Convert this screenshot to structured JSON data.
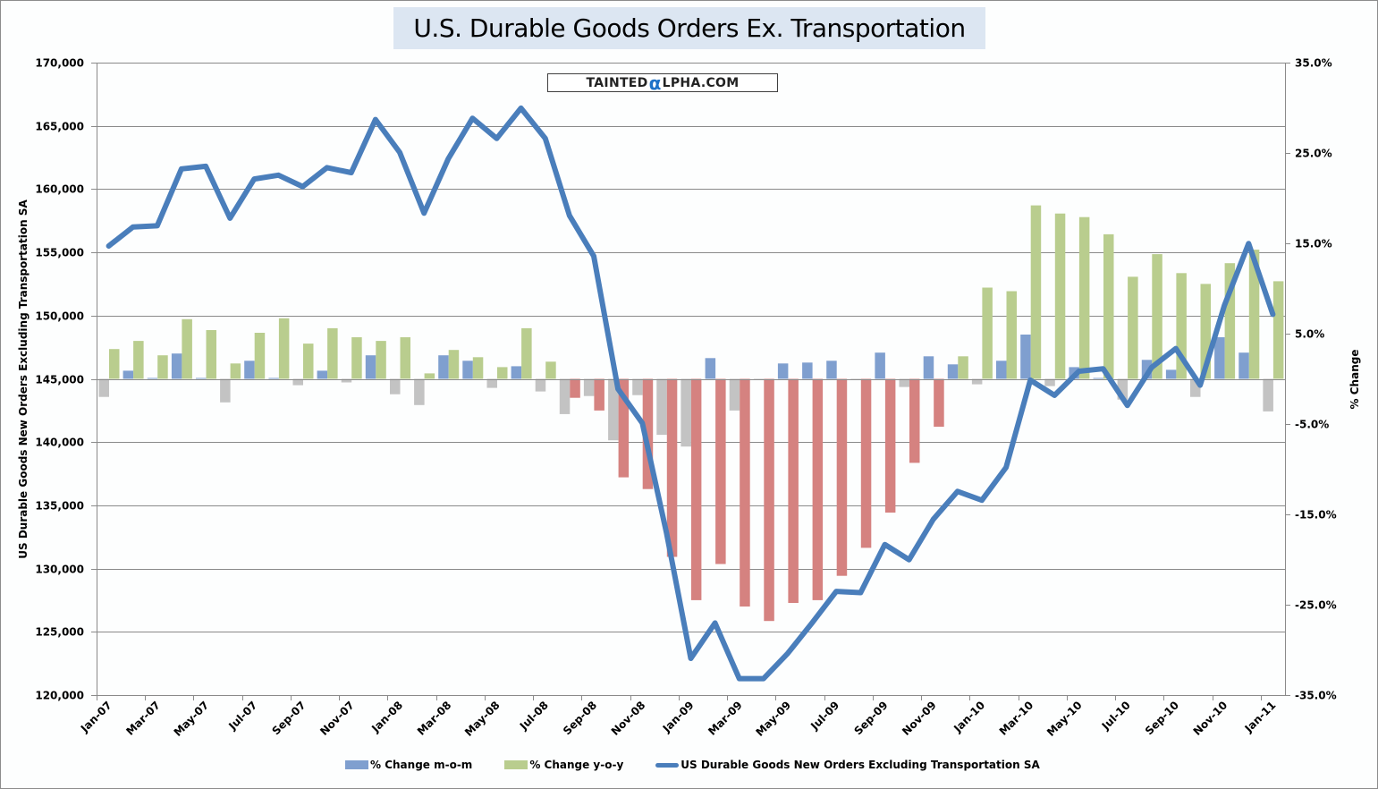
{
  "chart_data": {
    "type": "bar+line",
    "title": "U.S. Durable Goods Orders Ex. Transportation",
    "watermark": "TAINTEDαLPHA.COM",
    "watermark_parts": [
      "TAINTED",
      "α",
      "LPHA.COM"
    ],
    "left_axis": {
      "label": "US Durable Goods New Orders Excluding Transportation SA",
      "range": [
        120000,
        170000
      ],
      "ticks": [
        120000,
        125000,
        130000,
        135000,
        140000,
        145000,
        150000,
        155000,
        160000,
        165000,
        170000
      ],
      "tick_labels": [
        "120,000",
        "125,000",
        "130,000",
        "135,000",
        "140,000",
        "145,000",
        "150,000",
        "155,000",
        "160,000",
        "165,000",
        "170,000"
      ]
    },
    "right_axis": {
      "label": "% Change",
      "range": [
        -35,
        35
      ],
      "ticks": [
        -35,
        -25,
        -15,
        -5,
        5,
        15,
        25,
        35
      ],
      "tick_labels": [
        "-35.0%",
        "-25.0%",
        "-15.0%",
        "-5.0%",
        "5.0%",
        "15.0%",
        "25.0%",
        "35.0%"
      ]
    },
    "grid": "horizontal",
    "legend_position": "bottom",
    "x": [
      "Jan-07",
      "Feb-07",
      "Mar-07",
      "Apr-07",
      "May-07",
      "Jun-07",
      "Jul-07",
      "Aug-07",
      "Sep-07",
      "Oct-07",
      "Nov-07",
      "Dec-07",
      "Jan-08",
      "Feb-08",
      "Mar-08",
      "Apr-08",
      "May-08",
      "Jun-08",
      "Jul-08",
      "Aug-08",
      "Sep-08",
      "Oct-08",
      "Nov-08",
      "Dec-08",
      "Jan-09",
      "Feb-09",
      "Mar-09",
      "Apr-09",
      "May-09",
      "Jun-09",
      "Jul-09",
      "Aug-09",
      "Sep-09",
      "Oct-09",
      "Nov-09",
      "Dec-09",
      "Jan-10",
      "Feb-10",
      "Mar-10",
      "Apr-10",
      "May-10",
      "Jun-10",
      "Jul-10",
      "Aug-10",
      "Sep-10",
      "Oct-10",
      "Nov-10",
      "Dec-10",
      "Jan-11"
    ],
    "x_tick_labels": [
      "Jan-07",
      "Mar-07",
      "May-07",
      "Jul-07",
      "Sep-07",
      "Nov-07",
      "Jan-08",
      "Mar-08",
      "May-08",
      "Jul-08",
      "Sep-08",
      "Nov-08",
      "Jan-09",
      "Mar-09",
      "May-09",
      "Jul-09",
      "Sep-09",
      "Nov-09",
      "Jan-10",
      "Mar-10",
      "May-10",
      "Jul-10",
      "Sep-10",
      "Nov-10",
      "Jan-11"
    ],
    "series": [
      {
        "name": "% Change m-o-m",
        "type": "bar",
        "axis": "right",
        "color_positive": "#7f9fcf",
        "color_negative": "#c3c3c3",
        "values": [
          -2.0,
          0.9,
          0.1,
          2.8,
          0.1,
          -2.6,
          2.0,
          0.1,
          -0.7,
          0.9,
          -0.4,
          2.6,
          -1.7,
          -2.9,
          2.6,
          2.0,
          -1.0,
          1.4,
          -1.4,
          -3.9,
          -1.9,
          -6.8,
          -1.8,
          -6.2,
          -7.5,
          2.3,
          -3.5,
          -0.1,
          1.7,
          1.8,
          2.0,
          -0.1,
          2.9,
          -0.9,
          2.5,
          1.6,
          -0.6,
          2.0,
          4.9,
          -0.8,
          1.3,
          0.1,
          -2.3,
          2.1,
          1.0,
          -2.0,
          4.6,
          2.9,
          -3.6
        ]
      },
      {
        "name": "% Change y-o-y",
        "type": "bar",
        "axis": "right",
        "color_positive": "#b9cd8e",
        "color_negative": "#d58280",
        "values": [
          3.3,
          4.2,
          2.6,
          6.6,
          5.4,
          1.7,
          5.1,
          6.7,
          3.9,
          5.6,
          4.6,
          4.2,
          4.6,
          0.6,
          3.2,
          2.4,
          1.3,
          5.6,
          1.9,
          -2.1,
          -3.5,
          -10.9,
          -12.2,
          -19.7,
          -24.5,
          -20.5,
          -25.2,
          -26.8,
          -24.8,
          -24.5,
          -21.8,
          -18.7,
          -14.8,
          -9.3,
          -5.3,
          2.5,
          10.1,
          9.7,
          19.2,
          18.3,
          17.9,
          16.0,
          11.3,
          13.8,
          11.7,
          10.5,
          12.8,
          14.3,
          10.8
        ]
      },
      {
        "name": "US Durable Goods New Orders Excluding Transportation SA",
        "type": "line",
        "axis": "left",
        "color": "#4a7ebb",
        "values": [
          155500,
          157000,
          157100,
          161600,
          161800,
          157700,
          160800,
          161100,
          160200,
          161700,
          161300,
          165500,
          162900,
          158100,
          162400,
          165600,
          164000,
          166400,
          164000,
          157900,
          154700,
          144200,
          141500,
          132800,
          122900,
          125700,
          121300,
          121300,
          123300,
          125700,
          128200,
          128100,
          131900,
          130700,
          133900,
          136100,
          135400,
          138000,
          144900,
          143700,
          145600,
          145800,
          142900,
          145900,
          147400,
          144500,
          150800,
          155700,
          150100
        ]
      }
    ]
  }
}
